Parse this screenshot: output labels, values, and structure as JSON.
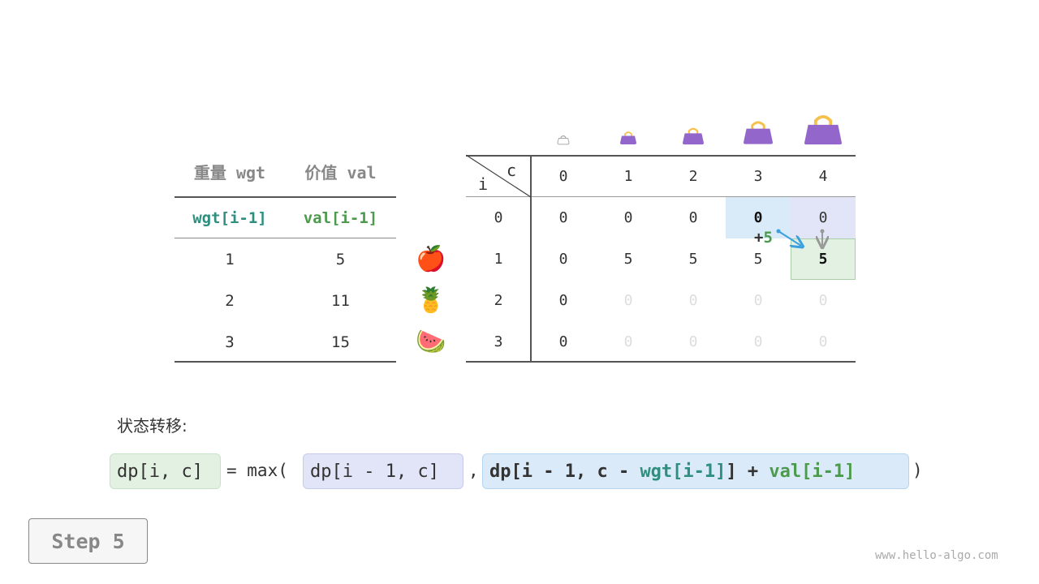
{
  "items_table": {
    "headers": [
      "重量 wgt",
      "价值 val"
    ],
    "subheaders": [
      "wgt[i-1]",
      "val[i-1]"
    ],
    "rows": [
      [
        "1",
        "5"
      ],
      [
        "2",
        "11"
      ],
      [
        "3",
        "15"
      ]
    ],
    "item_icons": [
      "apple-icon",
      "pineapple-icon",
      "watermelon-icon"
    ],
    "item_glyphs": [
      "🍎",
      "🍍",
      "🍉"
    ],
    "colors": {
      "wgt": "#2f8f7f",
      "val": "#4c9a4c"
    }
  },
  "dp_table": {
    "corner_c": "c",
    "corner_i": "i",
    "cols": [
      "0",
      "1",
      "2",
      "3",
      "4"
    ],
    "rows": [
      "0",
      "1",
      "2",
      "3"
    ],
    "cells": [
      [
        "0",
        "0",
        "0",
        "0",
        "0"
      ],
      [
        "0",
        "5",
        "5",
        "5",
        "5"
      ],
      [
        "0",
        "0",
        "0",
        "0",
        "0"
      ],
      [
        "0",
        "0",
        "0",
        "0",
        "0"
      ]
    ],
    "bag_icons": [
      "empty-bag-icon",
      "bag-icon",
      "bag-icon",
      "bag-icon",
      "bag-icon"
    ],
    "annotation": {
      "plus": "+",
      "value": "5"
    }
  },
  "formula": {
    "label": "状态转移:",
    "lhs": "dp[i, c]",
    "eq": "= max(",
    "a": "dp[i - 1, c]",
    "comma": ",",
    "b_pre": "dp[i - 1, c - ",
    "b_wgt": "wgt[i-1]",
    "b_mid": "] + ",
    "b_val": "val[i-1]",
    "close": ")",
    "colors": {
      "lhs_bg": "#e3f1e3",
      "a_bg": "#e2e5f7",
      "b_bg": "#dbeaf8"
    }
  },
  "step_button": "Step 5",
  "watermark": "www.hello-algo.com"
}
